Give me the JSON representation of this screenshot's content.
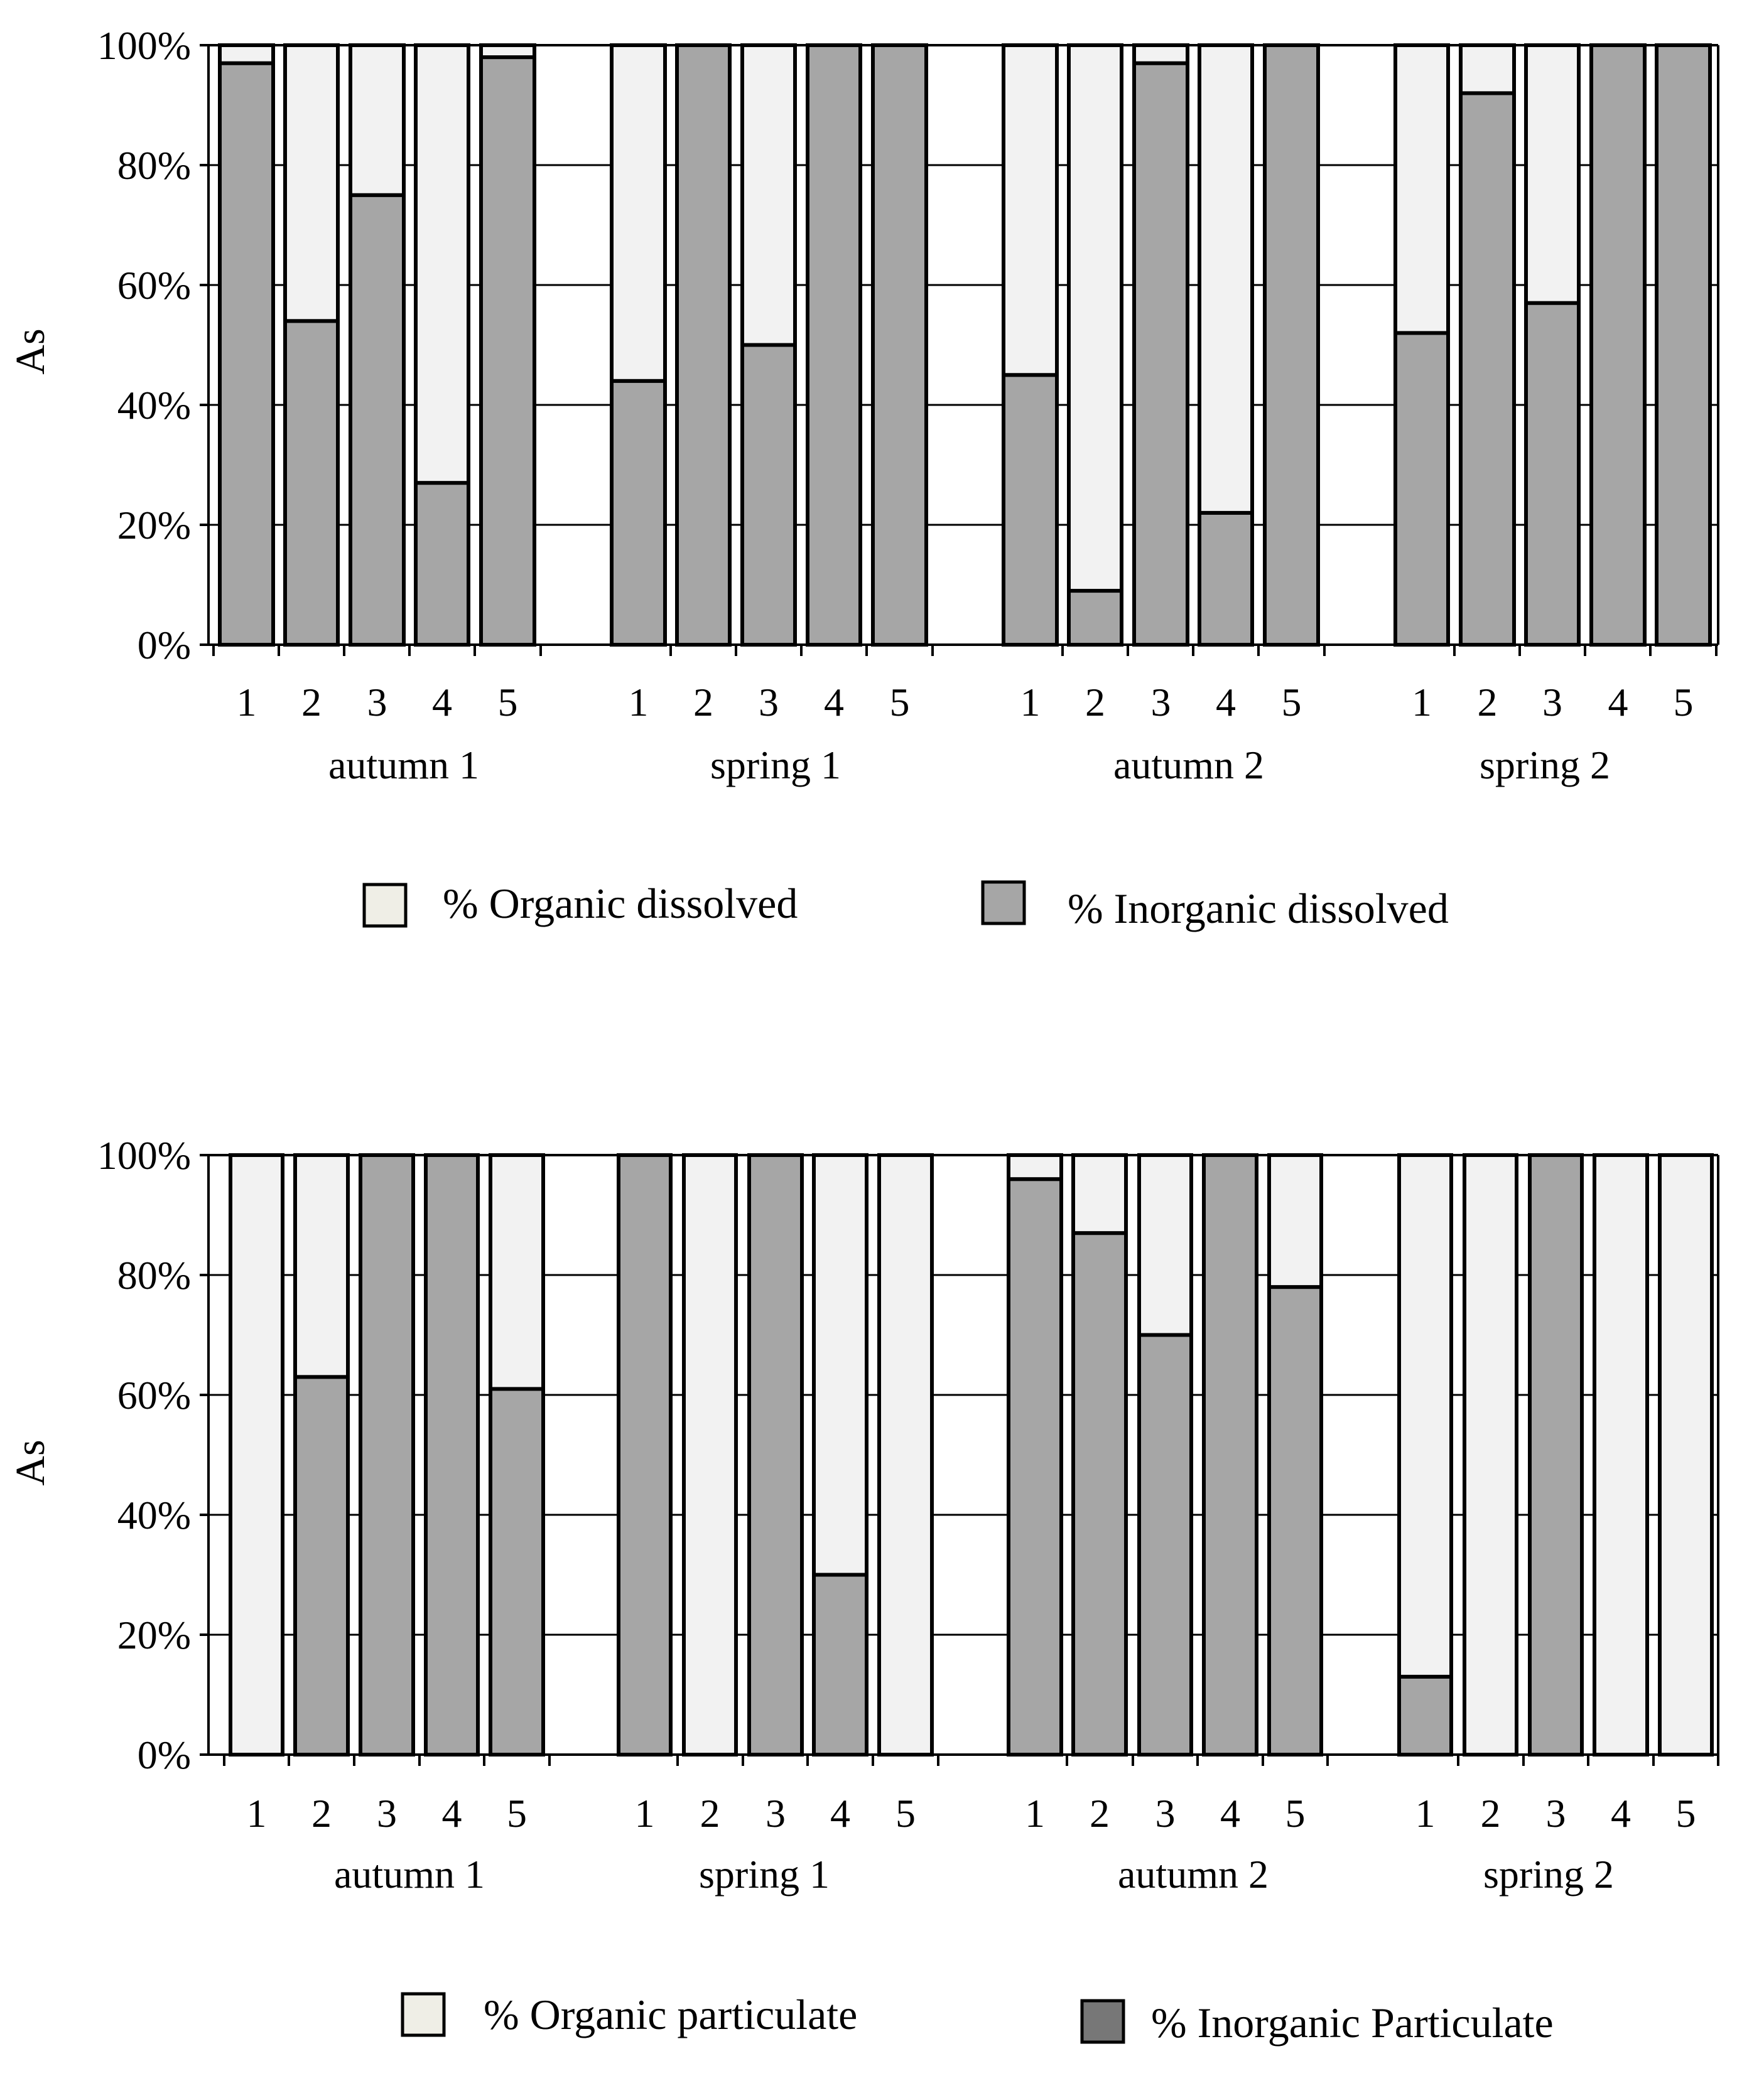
{
  "colors": {
    "organic": "#f2f2f2",
    "inorganic_dissolved": "#a6a6a6",
    "inorganic_particulate": "#a6a6a6",
    "legend_organic": "#efeee6",
    "legend_inorganic_particulate": "#777777",
    "axis": "#000000"
  },
  "chart_data": [
    {
      "type": "bar",
      "stacked": true,
      "percent": true,
      "ylabel": "As",
      "ylim": [
        0,
        100
      ],
      "yticks": [
        "0%",
        "20%",
        "40%",
        "60%",
        "80%",
        "100%"
      ],
      "grid": true,
      "groups": [
        "autumn  1",
        "spring 1",
        "autumn  2",
        "spring 2"
      ],
      "categories": [
        "1",
        "2",
        "3",
        "4",
        "5"
      ],
      "series": [
        {
          "name": "% Inorganic dissolved",
          "values": [
            [
              97,
              54,
              75,
              27,
              98
            ],
            [
              44,
              100,
              50,
              100,
              100
            ],
            [
              45,
              9,
              97,
              22,
              100
            ],
            [
              52,
              92,
              57,
              100,
              100
            ]
          ]
        },
        {
          "name": "% Organic dissolved",
          "values": [
            [
              3,
              46,
              25,
              73,
              2
            ],
            [
              56,
              0,
              50,
              0,
              0
            ],
            [
              55,
              91,
              3,
              78,
              0
            ],
            [
              48,
              8,
              43,
              0,
              0
            ]
          ]
        }
      ],
      "legend": [
        "% Organic dissolved",
        "% Inorganic dissolved"
      ],
      "legend_position": "bottom"
    },
    {
      "type": "bar",
      "stacked": true,
      "percent": true,
      "ylabel": "As",
      "ylim": [
        0,
        100
      ],
      "yticks": [
        "0%",
        "20%",
        "40%",
        "60%",
        "80%",
        "100%"
      ],
      "grid": true,
      "groups": [
        "autumn  1",
        "spring 1",
        "autumn  2",
        "spring 2"
      ],
      "categories": [
        "1",
        "2",
        "3",
        "4",
        "5"
      ],
      "series": [
        {
          "name": "% Inorganic Particulate",
          "values": [
            [
              0,
              63,
              100,
              100,
              61
            ],
            [
              100,
              0,
              100,
              30,
              0
            ],
            [
              96,
              87,
              70,
              100,
              78
            ],
            [
              13,
              0,
              100,
              0,
              0
            ]
          ]
        },
        {
          "name": "% Organic particulate",
          "values": [
            [
              100,
              37,
              0,
              0,
              39
            ],
            [
              0,
              100,
              0,
              70,
              100
            ],
            [
              4,
              13,
              30,
              0,
              22
            ],
            [
              87,
              100,
              0,
              100,
              100
            ]
          ]
        }
      ],
      "legend": [
        "% Organic particulate",
        "% Inorganic Particulate"
      ],
      "legend_position": "bottom"
    }
  ]
}
